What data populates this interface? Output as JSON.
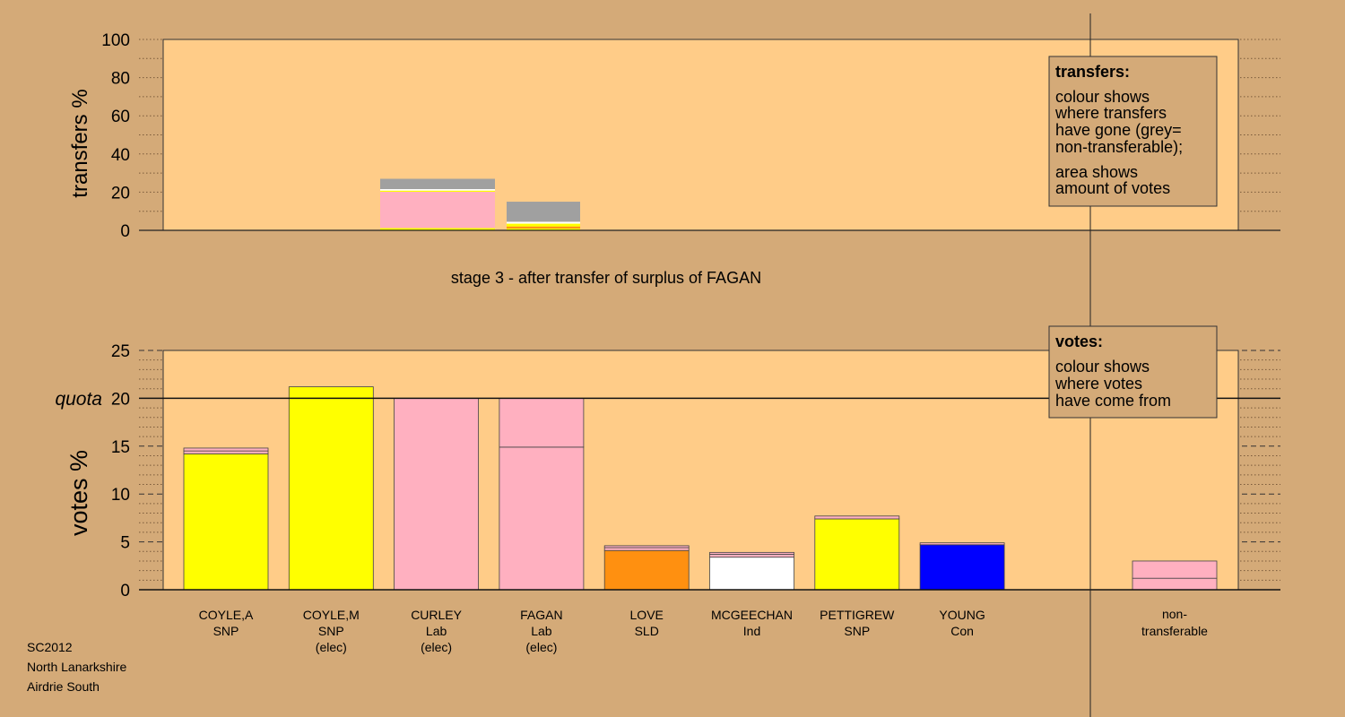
{
  "colors": {
    "background": "#d4aa78",
    "plot_area": "#ffcc88",
    "SNP": "#ffff00",
    "Lab": "#ffb0c0",
    "SLD": "#ff9010",
    "Ind": "#ffffff",
    "Con": "#0000ff",
    "nontransferable": "#a0a0a0"
  },
  "footer": {
    "line1": "SC2012",
    "line2": "North Lanarkshire",
    "line3": "Airdrie South"
  },
  "chart_data": [
    {
      "type": "bar",
      "panel": "transfers",
      "ylabel": "transfers %",
      "ylim": [
        0,
        100
      ],
      "yticks": [
        0,
        20,
        40,
        60,
        80,
        100
      ],
      "stage_label": "stage 3 - after transfer of surplus of FAGAN",
      "legend": {
        "title": "transfers:",
        "lines1": [
          "colour shows",
          "where transfers",
          "have gone (grey=",
          "non-transferable);"
        ],
        "lines2": [
          "area shows",
          "amount of votes"
        ]
      },
      "bars": [
        {
          "candidate": "CURLEY",
          "segments": [
            {
              "party": "SNP",
              "value": 1.2
            },
            {
              "party": "Lab",
              "value": 19.0
            },
            {
              "party": "SNP",
              "value": 0.6
            },
            {
              "party": "Ind",
              "value": 0.8
            },
            {
              "party": "nontransferable",
              "value": 5.4
            }
          ]
        },
        {
          "candidate": "FAGAN",
          "segments": [
            {
              "party": "SNP",
              "value": 1.0
            },
            {
              "party": "SLD",
              "value": 1.0
            },
            {
              "party": "SNP",
              "value": 1.5
            },
            {
              "party": "Ind",
              "value": 1.0
            },
            {
              "party": "nontransferable",
              "value": 10.5
            }
          ]
        }
      ]
    },
    {
      "type": "bar",
      "panel": "votes",
      "ylabel": "votes %",
      "ylim": [
        0,
        25
      ],
      "yticks": [
        0,
        5,
        10,
        15,
        20,
        25
      ],
      "quota": 20,
      "quota_label": "quota",
      "legend": {
        "title": "votes:",
        "lines": [
          "colour shows",
          "where votes",
          "have come from"
        ]
      },
      "candidates": [
        {
          "name": "COYLE,A",
          "party": "SNP",
          "status": "",
          "segments": [
            {
              "party": "SNP",
              "value": 14.2
            },
            {
              "party": "Lab",
              "value": 0.3
            },
            {
              "party": "Lab",
              "value": 0.3
            }
          ]
        },
        {
          "name": "COYLE,M",
          "party": "SNP",
          "status": "(elec)",
          "segments": [
            {
              "party": "SNP",
              "value": 21.2
            }
          ]
        },
        {
          "name": "CURLEY",
          "party": "Lab",
          "status": "(elec)",
          "segments": [
            {
              "party": "Lab",
              "value": 20.0
            }
          ]
        },
        {
          "name": "FAGAN",
          "party": "Lab",
          "status": "(elec)",
          "segments": [
            {
              "party": "Lab",
              "value": 14.9
            },
            {
              "party": "Lab",
              "value": 5.1
            }
          ]
        },
        {
          "name": "LOVE",
          "party": "SLD",
          "status": "",
          "segments": [
            {
              "party": "SLD",
              "value": 4.1
            },
            {
              "party": "Lab",
              "value": 0.3
            },
            {
              "party": "Lab",
              "value": 0.2
            }
          ]
        },
        {
          "name": "MCGEECHAN",
          "party": "Ind",
          "status": "",
          "segments": [
            {
              "party": "Ind",
              "value": 3.4
            },
            {
              "party": "Lab",
              "value": 0.3
            },
            {
              "party": "Lab",
              "value": 0.2
            }
          ]
        },
        {
          "name": "PETTIGREW",
          "party": "SNP",
          "status": "",
          "segments": [
            {
              "party": "SNP",
              "value": 7.4
            },
            {
              "party": "Lab",
              "value": 0.3
            }
          ]
        },
        {
          "name": "YOUNG",
          "party": "Con",
          "status": "",
          "segments": [
            {
              "party": "Con",
              "value": 4.7
            },
            {
              "party": "Lab",
              "value": 0.2
            }
          ]
        }
      ],
      "nontransferable": {
        "label1": "non-",
        "label2": "transferable",
        "segments": [
          {
            "party": "Lab",
            "value": 1.2
          },
          {
            "party": "Lab",
            "value": 1.8
          }
        ]
      }
    }
  ]
}
